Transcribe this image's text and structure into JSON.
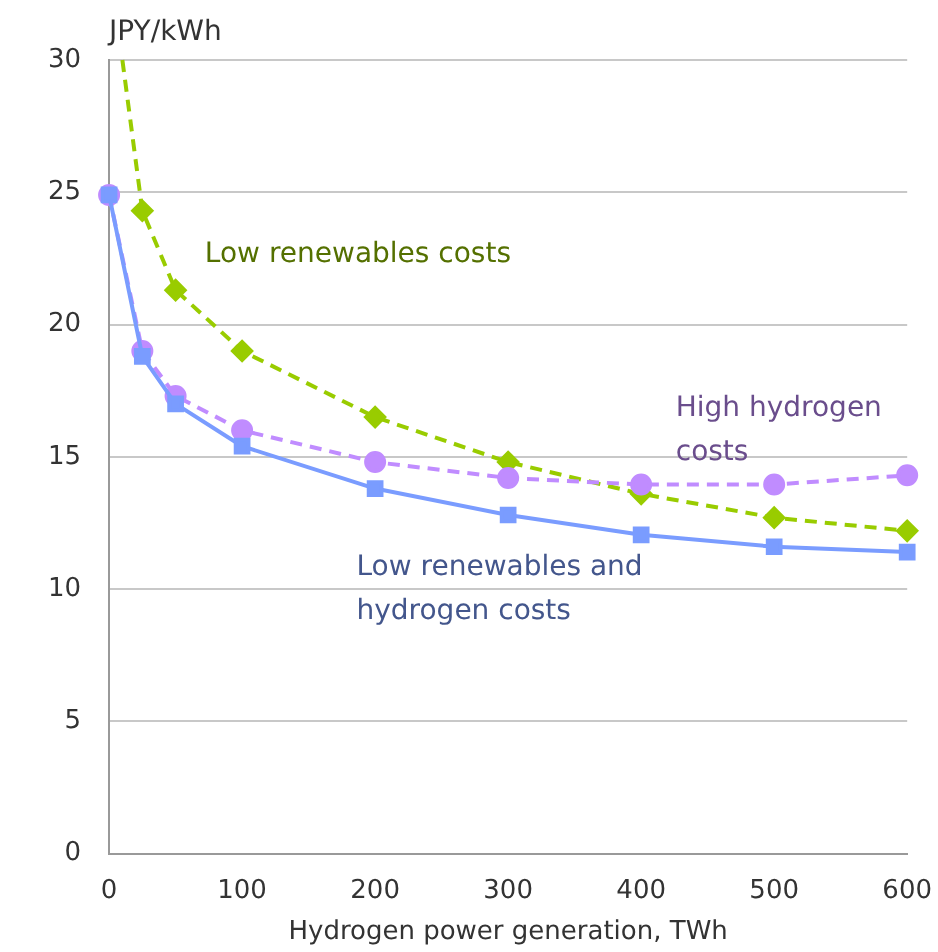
{
  "chart_data": {
    "type": "line",
    "xlabel": "Hydrogen power generation, TWh",
    "ylabel": "JPY/kWh",
    "xlim": [
      0,
      600
    ],
    "xticks": [
      0,
      100,
      200,
      300,
      400,
      500,
      600
    ],
    "ylim": [
      0,
      30
    ],
    "yticks": [
      0,
      5,
      10,
      15,
      20,
      25,
      30
    ],
    "grid": "y",
    "series": [
      {
        "color": "#99cc00",
        "line_style": "dashed",
        "marker": "diamond",
        "x": [
          10,
          25,
          50,
          100,
          200,
          300,
          400,
          500,
          600
        ],
        "values": [
          30,
          24.3,
          21.3,
          19.0,
          16.5,
          14.8,
          13.6,
          12.7,
          12.2
        ]
      },
      {
        "color": "#c08cff",
        "line_style": "dashed",
        "marker": "circle",
        "x": [
          0,
          25,
          50,
          100,
          200,
          300,
          400,
          500,
          600
        ],
        "values": [
          24.9,
          19.0,
          17.3,
          16.0,
          14.8,
          14.2,
          13.95,
          13.95,
          14.3
        ]
      },
      {
        "color": "#7a9cff",
        "line_style": "solid",
        "marker": "square",
        "x": [
          0,
          25,
          50,
          100,
          200,
          300,
          400,
          500,
          600
        ],
        "values": [
          24.9,
          18.8,
          17.0,
          15.4,
          13.8,
          12.8,
          12.05,
          11.6,
          11.4
        ]
      }
    ],
    "annotations": [
      "Low renewables costs",
      "High hydrogen\ncosts",
      "Low renewables and\nhydrogen costs"
    ]
  }
}
